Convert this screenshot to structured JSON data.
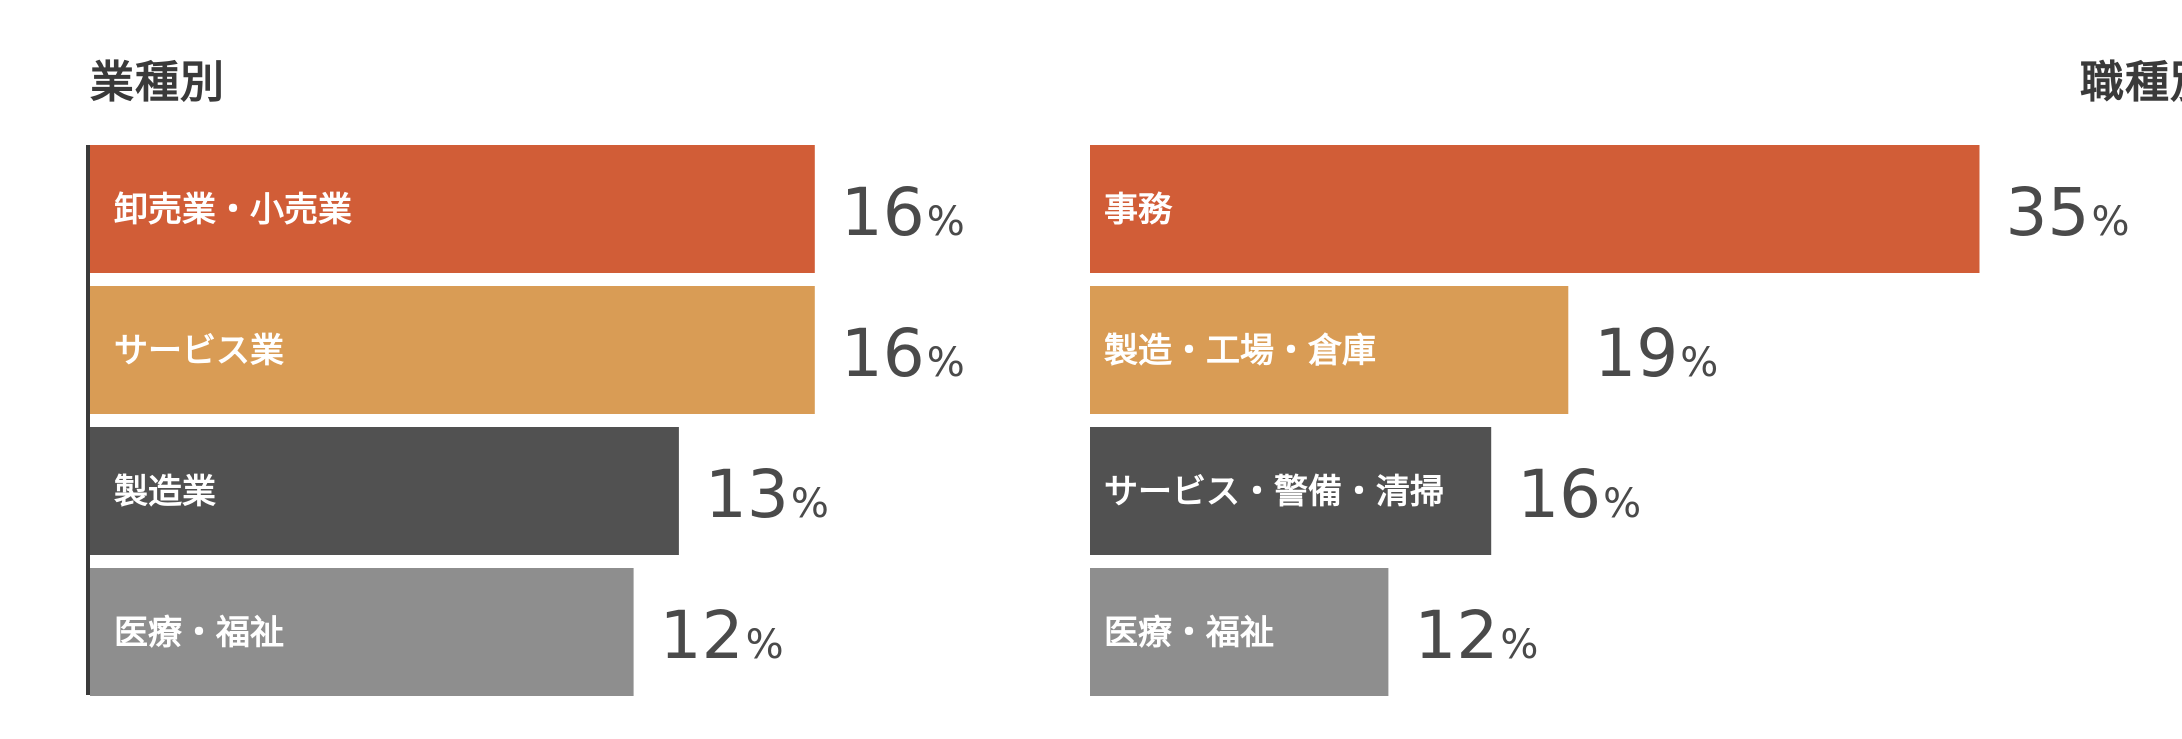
{
  "chart_data": [
    {
      "type": "bar",
      "orientation": "horizontal",
      "title": "業種別",
      "categories": [
        "卸売業・小売業",
        "サービス業",
        "製造業",
        "医療・福祉"
      ],
      "values": [
        16,
        16,
        13,
        12
      ],
      "unit": "%",
      "colors": [
        "#d15d37",
        "#d99c55",
        "#515151",
        "#8e8e8e"
      ]
    },
    {
      "type": "bar",
      "orientation": "horizontal",
      "title": "職種別",
      "categories": [
        "事務",
        "製造・工場・倉庫",
        "サービス・警備・清掃",
        "医療・福祉"
      ],
      "values": [
        35,
        19,
        16,
        12
      ],
      "unit": "%",
      "colors": [
        "#d15d37",
        "#d99c55",
        "#515151",
        "#8e8e8e"
      ]
    }
  ]
}
